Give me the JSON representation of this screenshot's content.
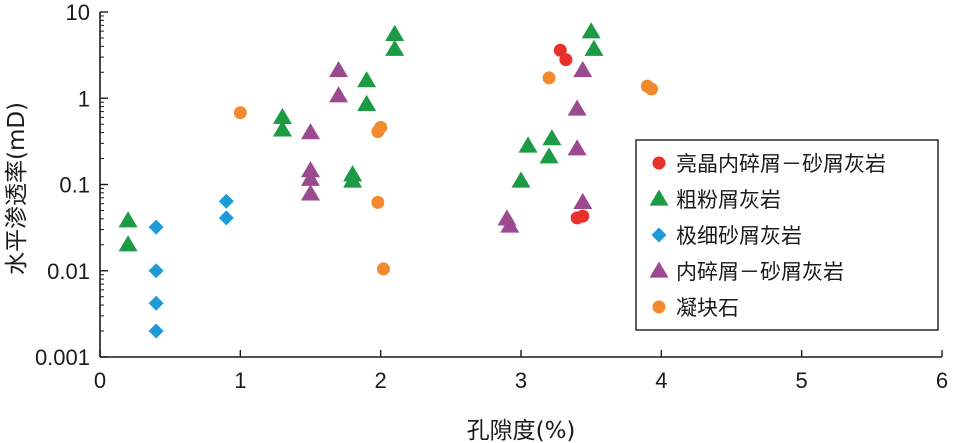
{
  "chart_data": {
    "type": "scatter",
    "title": "",
    "xlabel": "孔隙度(%)",
    "ylabel": "水平渗透率(mD)",
    "x_scale": "linear",
    "y_scale": "log",
    "xlim": [
      0,
      6
    ],
    "ylim": [
      0.001,
      10
    ],
    "x_ticks": [
      "0",
      "1",
      "2",
      "3",
      "4",
      "5",
      "6"
    ],
    "y_ticks": [
      "0.001",
      "0.01",
      "0.1",
      "1",
      "10"
    ],
    "grid": false,
    "legend_position": "right",
    "series": [
      {
        "name": "亮晶内碎屑－砂屑灰岩",
        "marker": "circle",
        "color": "#e8312b",
        "points": [
          [
            3.28,
            3.6
          ],
          [
            3.32,
            2.8
          ],
          [
            3.4,
            0.041
          ],
          [
            3.44,
            0.043
          ]
        ]
      },
      {
        "name": "粗粉屑灰岩",
        "marker": "triangle",
        "color": "#1c9a44",
        "points": [
          [
            0.2,
            0.038
          ],
          [
            0.2,
            0.02
          ],
          [
            1.3,
            0.6
          ],
          [
            1.3,
            0.43
          ],
          [
            1.8,
            0.13
          ],
          [
            1.8,
            0.11
          ],
          [
            1.9,
            1.6
          ],
          [
            1.9,
            0.85
          ],
          [
            2.1,
            5.5
          ],
          [
            2.1,
            3.7
          ],
          [
            3.0,
            0.11
          ],
          [
            3.05,
            0.28
          ],
          [
            3.2,
            0.21
          ],
          [
            3.22,
            0.34
          ],
          [
            3.5,
            5.9
          ],
          [
            3.52,
            3.7
          ]
        ]
      },
      {
        "name": "极细砂屑灰岩",
        "marker": "diamond",
        "color": "#1e9ad6",
        "points": [
          [
            0.4,
            0.032
          ],
          [
            0.4,
            0.01
          ],
          [
            0.4,
            0.0042
          ],
          [
            0.4,
            0.002
          ],
          [
            0.9,
            0.064
          ],
          [
            0.9,
            0.041
          ]
        ]
      },
      {
        "name": "内碎屑－砂屑灰岩",
        "marker": "triangle",
        "color": "#9c4a8f",
        "points": [
          [
            1.5,
            0.4
          ],
          [
            1.5,
            0.145
          ],
          [
            1.5,
            0.115
          ],
          [
            1.5,
            0.078
          ],
          [
            1.7,
            2.1
          ],
          [
            1.7,
            1.07
          ],
          [
            2.9,
            0.04
          ],
          [
            2.92,
            0.033
          ],
          [
            3.4,
            0.75
          ],
          [
            3.4,
            0.26
          ],
          [
            3.44,
            2.1
          ],
          [
            3.44,
            0.062
          ]
        ]
      },
      {
        "name": "凝块石",
        "marker": "circle",
        "color": "#f28a2e",
        "points": [
          [
            1.0,
            0.68
          ],
          [
            1.98,
            0.41
          ],
          [
            2.0,
            0.46
          ],
          [
            1.98,
            0.062
          ],
          [
            2.02,
            0.0105
          ],
          [
            3.2,
            1.72
          ],
          [
            3.9,
            1.38
          ],
          [
            3.93,
            1.28
          ]
        ]
      }
    ]
  }
}
